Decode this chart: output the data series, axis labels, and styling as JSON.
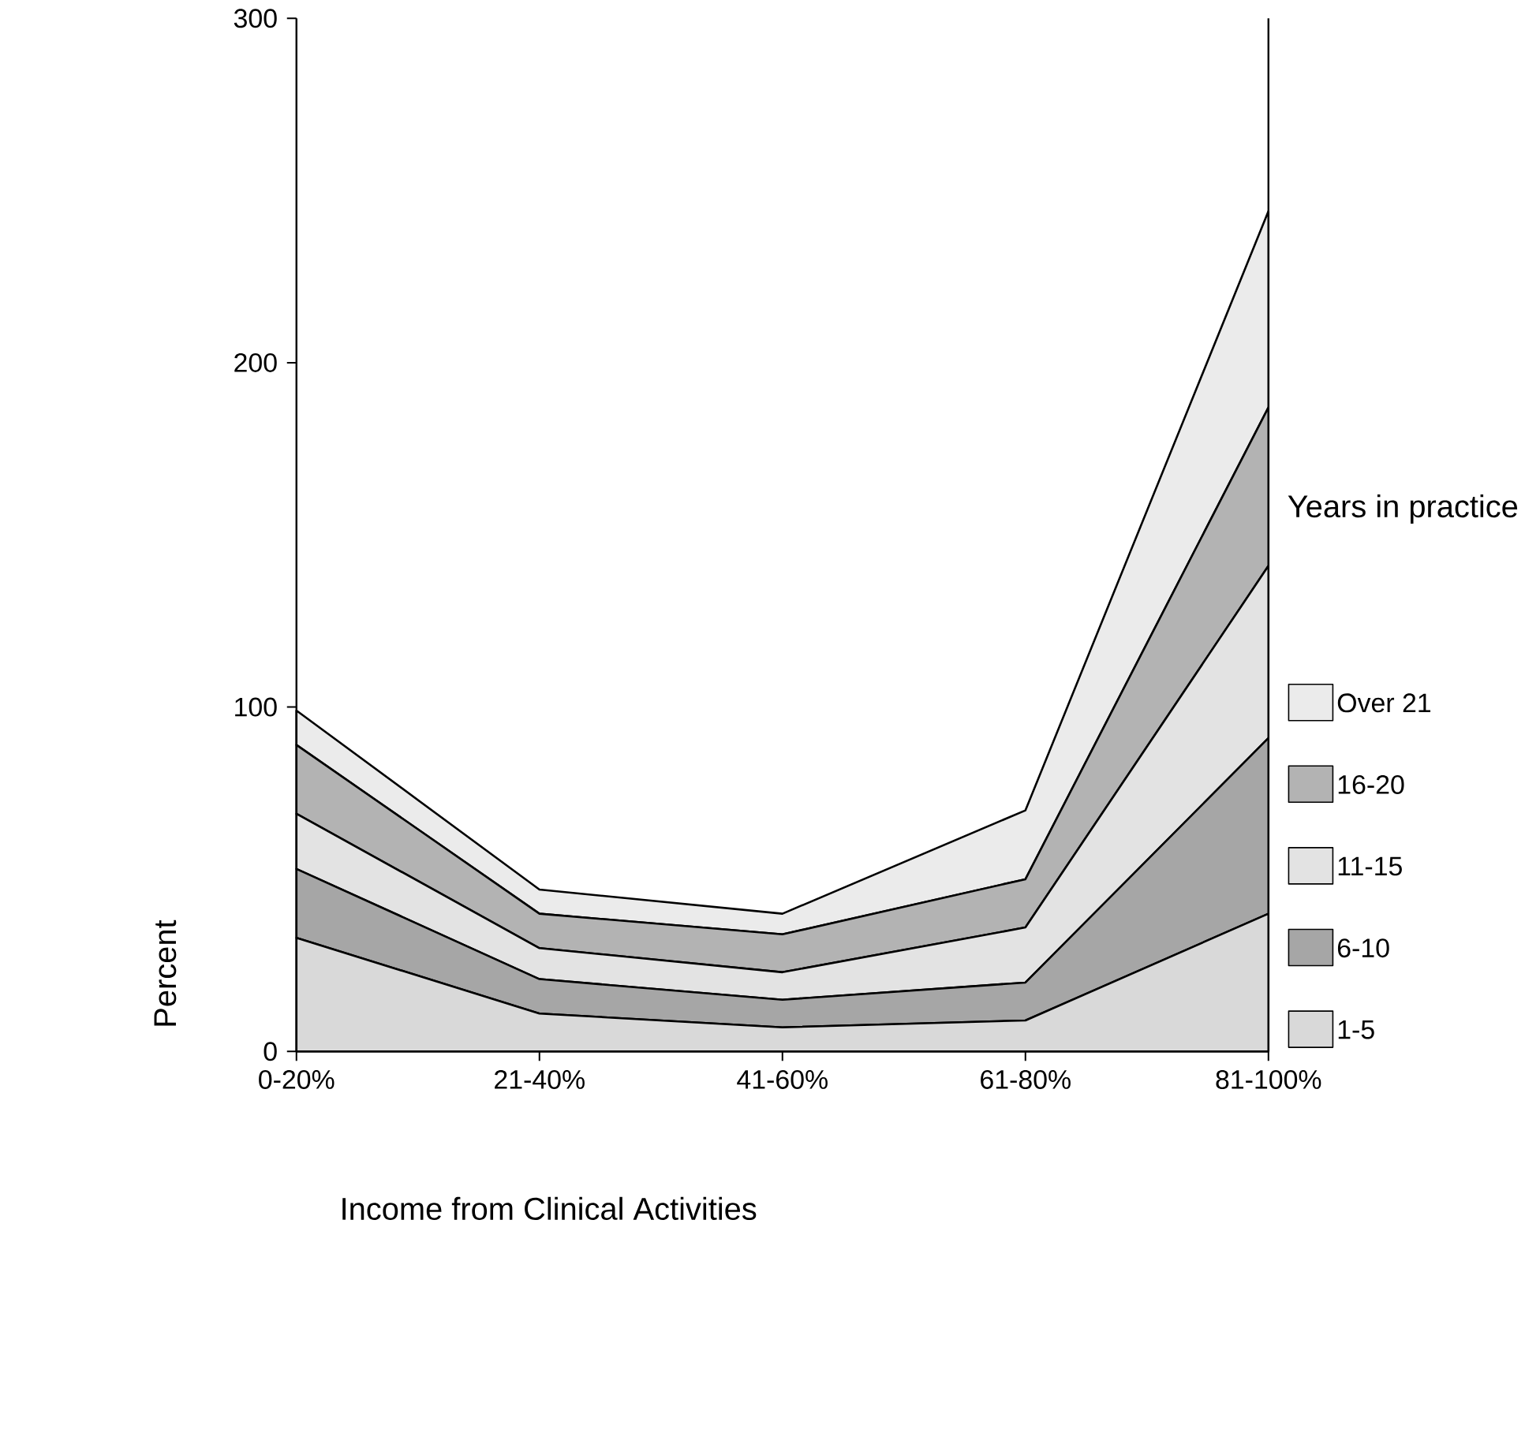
{
  "chart_data": {
    "type": "area",
    "stacked": true,
    "xlabel": "Income from Clinical Activities",
    "ylabel": "Percent",
    "legend_title": "Years in practice",
    "legend": "right",
    "categories": [
      "0-20%",
      "21-40%",
      "41-60%",
      "61-80%",
      "81-100%"
    ],
    "ylim": [
      0,
      300
    ],
    "yticks": [
      0,
      100,
      200,
      300
    ],
    "series": [
      {
        "name": "1-5",
        "color": "#d9d9d9",
        "values": [
          33,
          11,
          7,
          9,
          40
        ]
      },
      {
        "name": "6-10",
        "color": "#a6a6a6",
        "values": [
          20,
          10,
          8,
          11,
          51
        ]
      },
      {
        "name": "11-15",
        "color": "#e3e3e3",
        "values": [
          16,
          9,
          8,
          16,
          50
        ]
      },
      {
        "name": "16-20",
        "color": "#b3b3b3",
        "values": [
          20,
          10,
          11,
          14,
          46
        ]
      },
      {
        "name": "Over 21",
        "color": "#ebebeb",
        "values": [
          10,
          7,
          6,
          20,
          57
        ]
      }
    ]
  }
}
